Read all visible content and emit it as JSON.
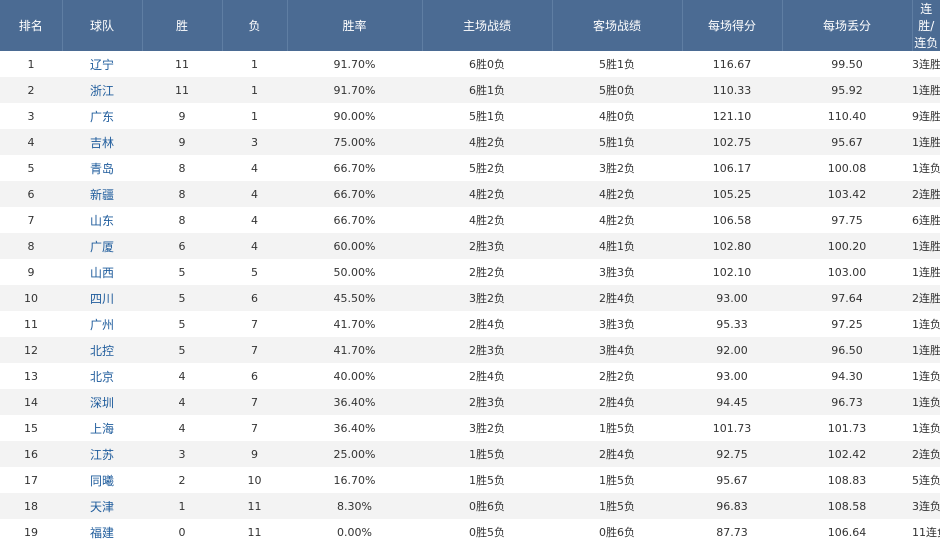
{
  "table": {
    "headers": {
      "rank": "排名",
      "team": "球队",
      "wins": "胜",
      "losses": "负",
      "win_pct": "胜率",
      "home": "主场战绩",
      "away": "客场战绩",
      "ppg": "每场得分",
      "papg": "每场丢分",
      "streak": "连胜/连负"
    },
    "rows": [
      {
        "rank": "1",
        "team": "辽宁",
        "wins": "11",
        "losses": "1",
        "win_pct": "91.70%",
        "home": "6胜0负",
        "away": "5胜1负",
        "ppg": "116.67",
        "papg": "99.50",
        "streak": "3连胜"
      },
      {
        "rank": "2",
        "team": "浙江",
        "wins": "11",
        "losses": "1",
        "win_pct": "91.70%",
        "home": "6胜1负",
        "away": "5胜0负",
        "ppg": "110.33",
        "papg": "95.92",
        "streak": "1连胜"
      },
      {
        "rank": "3",
        "team": "广东",
        "wins": "9",
        "losses": "1",
        "win_pct": "90.00%",
        "home": "5胜1负",
        "away": "4胜0负",
        "ppg": "121.10",
        "papg": "110.40",
        "streak": "9连胜"
      },
      {
        "rank": "4",
        "team": "吉林",
        "wins": "9",
        "losses": "3",
        "win_pct": "75.00%",
        "home": "4胜2负",
        "away": "5胜1负",
        "ppg": "102.75",
        "papg": "95.67",
        "streak": "1连胜"
      },
      {
        "rank": "5",
        "team": "青岛",
        "wins": "8",
        "losses": "4",
        "win_pct": "66.70%",
        "home": "5胜2负",
        "away": "3胜2负",
        "ppg": "106.17",
        "papg": "100.08",
        "streak": "1连负"
      },
      {
        "rank": "6",
        "team": "新疆",
        "wins": "8",
        "losses": "4",
        "win_pct": "66.70%",
        "home": "4胜2负",
        "away": "4胜2负",
        "ppg": "105.25",
        "papg": "103.42",
        "streak": "2连胜"
      },
      {
        "rank": "7",
        "team": "山东",
        "wins": "8",
        "losses": "4",
        "win_pct": "66.70%",
        "home": "4胜2负",
        "away": "4胜2负",
        "ppg": "106.58",
        "papg": "97.75",
        "streak": "6连胜"
      },
      {
        "rank": "8",
        "team": "广厦",
        "wins": "6",
        "losses": "4",
        "win_pct": "60.00%",
        "home": "2胜3负",
        "away": "4胜1负",
        "ppg": "102.80",
        "papg": "100.20",
        "streak": "1连胜"
      },
      {
        "rank": "9",
        "team": "山西",
        "wins": "5",
        "losses": "5",
        "win_pct": "50.00%",
        "home": "2胜2负",
        "away": "3胜3负",
        "ppg": "102.10",
        "papg": "103.00",
        "streak": "1连胜"
      },
      {
        "rank": "10",
        "team": "四川",
        "wins": "5",
        "losses": "6",
        "win_pct": "45.50%",
        "home": "3胜2负",
        "away": "2胜4负",
        "ppg": "93.00",
        "papg": "97.64",
        "streak": "2连胜"
      },
      {
        "rank": "11",
        "team": "广州",
        "wins": "5",
        "losses": "7",
        "win_pct": "41.70%",
        "home": "2胜4负",
        "away": "3胜3负",
        "ppg": "95.33",
        "papg": "97.25",
        "streak": "1连负"
      },
      {
        "rank": "12",
        "team": "北控",
        "wins": "5",
        "losses": "7",
        "win_pct": "41.70%",
        "home": "2胜3负",
        "away": "3胜4负",
        "ppg": "92.00",
        "papg": "96.50",
        "streak": "1连胜"
      },
      {
        "rank": "13",
        "team": "北京",
        "wins": "4",
        "losses": "6",
        "win_pct": "40.00%",
        "home": "2胜4负",
        "away": "2胜2负",
        "ppg": "93.00",
        "papg": "94.30",
        "streak": "1连负"
      },
      {
        "rank": "14",
        "team": "深圳",
        "wins": "4",
        "losses": "7",
        "win_pct": "36.40%",
        "home": "2胜3负",
        "away": "2胜4负",
        "ppg": "94.45",
        "papg": "96.73",
        "streak": "1连负"
      },
      {
        "rank": "15",
        "team": "上海",
        "wins": "4",
        "losses": "7",
        "win_pct": "36.40%",
        "home": "3胜2负",
        "away": "1胜5负",
        "ppg": "101.73",
        "papg": "101.73",
        "streak": "1连负"
      },
      {
        "rank": "16",
        "team": "江苏",
        "wins": "3",
        "losses": "9",
        "win_pct": "25.00%",
        "home": "1胜5负",
        "away": "2胜4负",
        "ppg": "92.75",
        "papg": "102.42",
        "streak": "2连负"
      },
      {
        "rank": "17",
        "team": "同曦",
        "wins": "2",
        "losses": "10",
        "win_pct": "16.70%",
        "home": "1胜5负",
        "away": "1胜5负",
        "ppg": "95.67",
        "papg": "108.83",
        "streak": "5连负"
      },
      {
        "rank": "18",
        "team": "天津",
        "wins": "1",
        "losses": "11",
        "win_pct": "8.30%",
        "home": "0胜6负",
        "away": "1胜5负",
        "ppg": "96.83",
        "papg": "108.58",
        "streak": "3连负"
      },
      {
        "rank": "19",
        "team": "福建",
        "wins": "0",
        "losses": "11",
        "win_pct": "0.00%",
        "home": "0胜5负",
        "away": "0胜6负",
        "ppg": "87.73",
        "papg": "106.64",
        "streak": "11连负"
      }
    ]
  },
  "colors": {
    "header_bg": "#4b6b93",
    "header_text": "#ffffff",
    "row_alt_bg": "#f3f3f3",
    "team_link": "#1f5c9c"
  }
}
